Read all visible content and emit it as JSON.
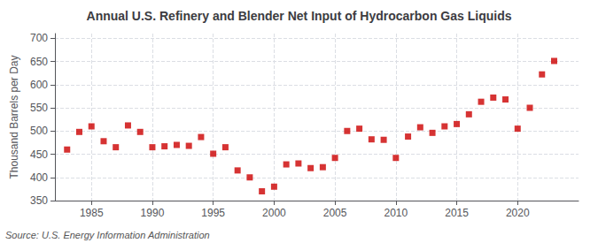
{
  "chart_data": {
    "type": "scatter",
    "title": "Annual U.S. Refinery and Blender Net Input of Hydrocarbon Gas Liquids",
    "ylabel": "Thousand Barrels per Day",
    "annotation": "Source: U.S. Energy Information Administration",
    "x": [
      1983,
      1984,
      1985,
      1986,
      1987,
      1988,
      1989,
      1990,
      1991,
      1992,
      1993,
      1994,
      1995,
      1996,
      1997,
      1998,
      1999,
      2000,
      2001,
      2002,
      2003,
      2004,
      2005,
      2006,
      2007,
      2008,
      2009,
      2010,
      2011,
      2012,
      2013,
      2014,
      2015,
      2016,
      2017,
      2018,
      2019,
      2020,
      2021,
      2022,
      2023
    ],
    "values": [
      460,
      498,
      510,
      478,
      465,
      512,
      498,
      465,
      467,
      470,
      468,
      487,
      451,
      465,
      415,
      400,
      370,
      380,
      428,
      430,
      420,
      422,
      442,
      500,
      505,
      482,
      481,
      442,
      488,
      508,
      496,
      510,
      515,
      536,
      563,
      572,
      568,
      505,
      550,
      622,
      651
    ],
    "color": "#cc0000",
    "marker": "square",
    "xlim": [
      1982,
      2025
    ],
    "ylim": [
      350,
      710
    ],
    "xticks": [
      1985,
      1990,
      1995,
      2000,
      2005,
      2010,
      2015,
      2020
    ],
    "yticks": [
      350,
      400,
      450,
      500,
      550,
      600,
      650,
      700
    ],
    "grid": true
  }
}
